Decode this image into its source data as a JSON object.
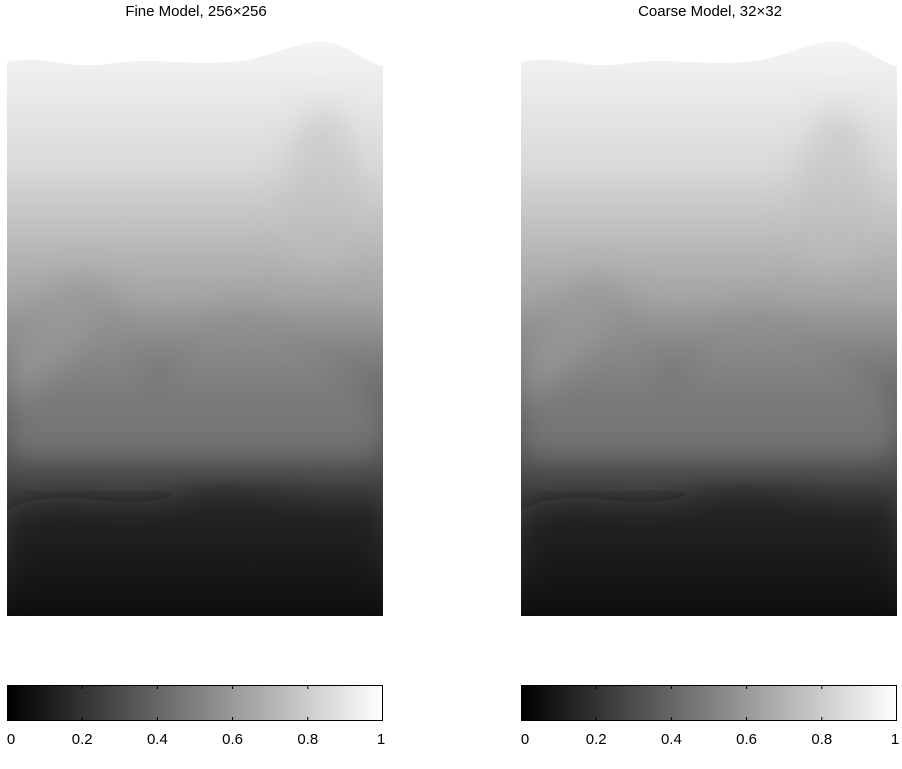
{
  "chart_data": [
    {
      "type": "heatmap",
      "title": "Fine Model, 256×256",
      "colormap": "gray",
      "clim": [
        0,
        1
      ],
      "colorbar": {
        "location": "bottom",
        "ticks": [
          0,
          0.2,
          0.4,
          0.6,
          0.8,
          1
        ],
        "tick_labels": [
          "0",
          "0.2",
          "0.4",
          "0.6",
          "0.8",
          "1"
        ]
      }
    },
    {
      "type": "heatmap",
      "title": "Coarse Model, 32×32",
      "colormap": "gray",
      "clim": [
        0,
        1
      ],
      "colorbar": {
        "location": "bottom",
        "ticks": [
          0,
          0.2,
          0.4,
          0.6,
          0.8,
          1
        ],
        "tick_labels": [
          "0",
          "0.2",
          "0.4",
          "0.6",
          "0.8",
          "1"
        ]
      }
    }
  ]
}
